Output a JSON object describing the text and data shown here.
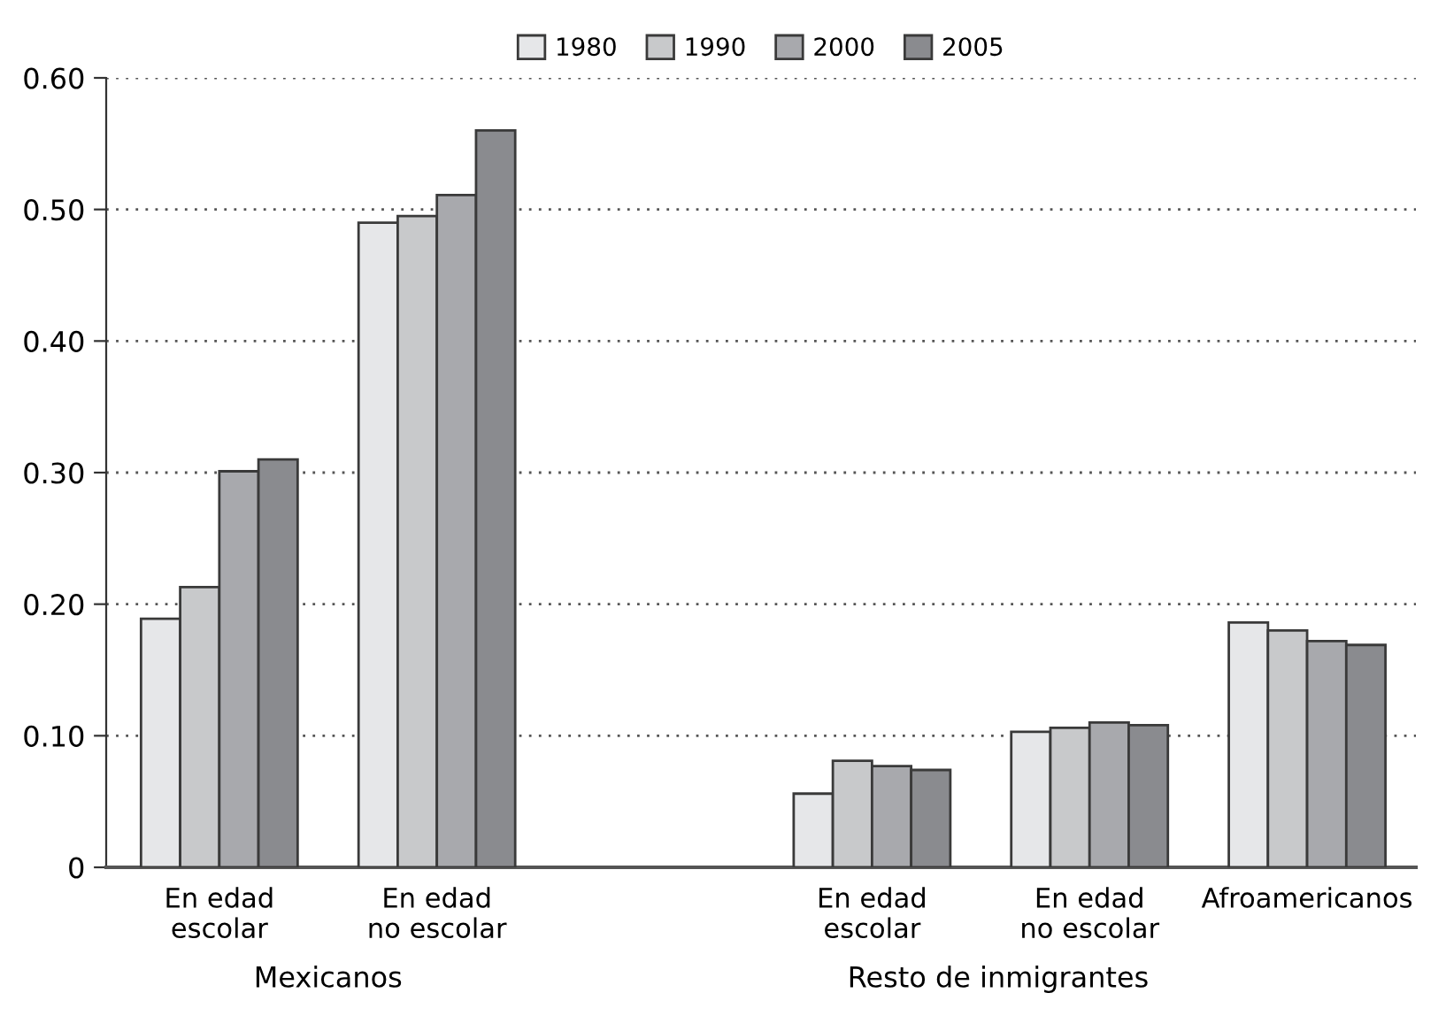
{
  "chart_data": {
    "type": "bar",
    "categories": [
      "En edad\nescolar",
      "En edad\nno escolar",
      null,
      "En edad\nescolar",
      "En edad\nno escolar",
      "Afroamericanos"
    ],
    "series": [
      {
        "name": "1980",
        "color": "#e6e7e9",
        "values": [
          0.189,
          0.49,
          null,
          0.056,
          0.103,
          0.186
        ]
      },
      {
        "name": "1990",
        "color": "#c8c9cb",
        "values": [
          0.213,
          0.495,
          null,
          0.081,
          0.106,
          0.18
        ]
      },
      {
        "name": "2000",
        "color": "#a8a9ad",
        "values": [
          0.301,
          0.511,
          null,
          0.077,
          0.11,
          0.172
        ]
      },
      {
        "name": "2005",
        "color": "#8a8b8f",
        "values": [
          0.31,
          0.56,
          null,
          0.074,
          0.108,
          0.169
        ]
      }
    ],
    "ylim": [
      0,
      0.6
    ],
    "yticks": [
      0,
      {
        "value": 0.1,
        "label": "0.10"
      },
      {
        "value": 0.2,
        "label": "0.20"
      },
      {
        "value": 0.3,
        "label": "0.30"
      },
      {
        "value": 0.4,
        "label": "0.40"
      },
      {
        "value": 0.5,
        "label": "0.50"
      },
      {
        "value": 0.6,
        "label": "0.60"
      }
    ],
    "grid": "y",
    "legend": "top",
    "annotations": [
      "Mexicanos",
      "Resto de inmigrantes"
    ]
  }
}
